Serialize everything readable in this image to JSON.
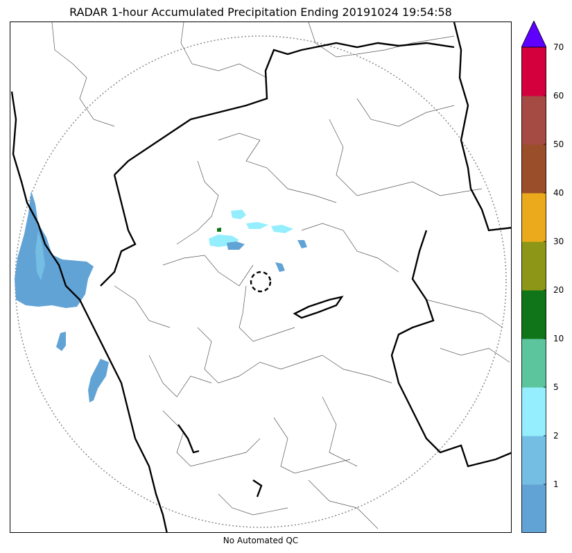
{
  "title": "RADAR 1-hour Accumulated Precipitation Ending 20191024 19:54:58",
  "caption": "No Automated QC",
  "colorbar": {
    "labels": [
      "70",
      "60",
      "50",
      "40",
      "30",
      "20",
      "10",
      "5",
      "2",
      "1"
    ],
    "colors": [
      "#62a3d6",
      "#74bde3",
      "#94eefd",
      "#5dc59d",
      "#0f7518",
      "#8d9617",
      "#eaaa1b",
      "#9a4e29",
      "#a64a44",
      "#d4003d"
    ],
    "extend_color": "#5f00ff"
  },
  "map": {
    "precip_color_light": "#62a3d6",
    "precip_color_cyan": "#94eefd",
    "precip_color_green": "#0f7518"
  }
}
